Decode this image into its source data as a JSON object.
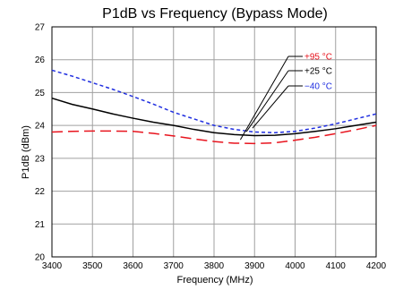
{
  "chart_data": {
    "type": "line",
    "title": "P1dB vs Frequency (Bypass Mode)",
    "xlabel": "Frequency (MHz)",
    "ylabel": "P1dB (dBm)",
    "xlim": [
      3400,
      4200
    ],
    "ylim": [
      20,
      27
    ],
    "xticks": [
      3400,
      3500,
      3600,
      3700,
      3800,
      3900,
      4000,
      4100,
      4200
    ],
    "yticks": [
      20,
      21,
      22,
      23,
      24,
      25,
      26,
      27
    ],
    "grid": true,
    "legend_placement": "upper-right, leader lines to curves",
    "series": [
      {
        "name": "+95 °C",
        "color": "#e8141e",
        "style": "long-dash",
        "x": [
          3400,
          3450,
          3500,
          3550,
          3600,
          3650,
          3700,
          3750,
          3800,
          3850,
          3900,
          3950,
          4000,
          4050,
          4100,
          4150,
          4200
        ],
        "y": [
          23.8,
          23.82,
          23.83,
          23.83,
          23.82,
          23.76,
          23.68,
          23.59,
          23.51,
          23.46,
          23.45,
          23.47,
          23.55,
          23.64,
          23.75,
          23.87,
          24.0
        ]
      },
      {
        "name": "+25 °C",
        "color": "#000000",
        "style": "solid",
        "x": [
          3400,
          3450,
          3500,
          3550,
          3600,
          3650,
          3700,
          3750,
          3800,
          3850,
          3900,
          3950,
          4000,
          4050,
          4100,
          4150,
          4200
        ],
        "y": [
          24.83,
          24.64,
          24.5,
          24.35,
          24.22,
          24.1,
          24.0,
          23.88,
          23.78,
          23.72,
          23.69,
          23.7,
          23.75,
          23.82,
          23.9,
          24.0,
          24.1
        ]
      },
      {
        "name": "−40 °C",
        "color": "#1f2ee0",
        "style": "short-dash",
        "x": [
          3400,
          3450,
          3500,
          3550,
          3600,
          3650,
          3700,
          3750,
          3800,
          3850,
          3900,
          3950,
          4000,
          4050,
          4100,
          4150,
          4200
        ],
        "y": [
          25.68,
          25.5,
          25.3,
          25.1,
          24.88,
          24.65,
          24.4,
          24.2,
          24.0,
          23.88,
          23.8,
          23.78,
          23.82,
          23.92,
          24.05,
          24.2,
          24.35
        ]
      }
    ]
  }
}
